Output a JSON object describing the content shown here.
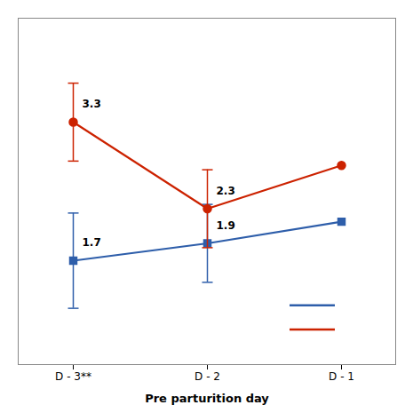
{
  "chart_data": {
    "type": "line",
    "xlabel": "Pre parturition day",
    "categories": [
      "D - 3**",
      "D - 2",
      "D - 1"
    ],
    "series": [
      {
        "color": "#2E5EAA",
        "marker": "square",
        "values": [
          1.7,
          1.9,
          2.15
        ],
        "errors": [
          0.55,
          0.45,
          0.0
        ],
        "value_labels": [
          "1.7",
          "1.9",
          null
        ]
      },
      {
        "color": "#CC2200",
        "marker": "circle",
        "values": [
          3.3,
          2.3,
          2.8
        ],
        "errors": [
          0.45,
          0.45,
          0.0
        ],
        "value_labels": [
          "3.3",
          "2.3",
          null
        ]
      }
    ],
    "ylim": [
      0.5,
      4.5
    ],
    "yticks": [],
    "grid": false,
    "tick_labels": "x",
    "data_labels": true,
    "legend": "lower right"
  }
}
